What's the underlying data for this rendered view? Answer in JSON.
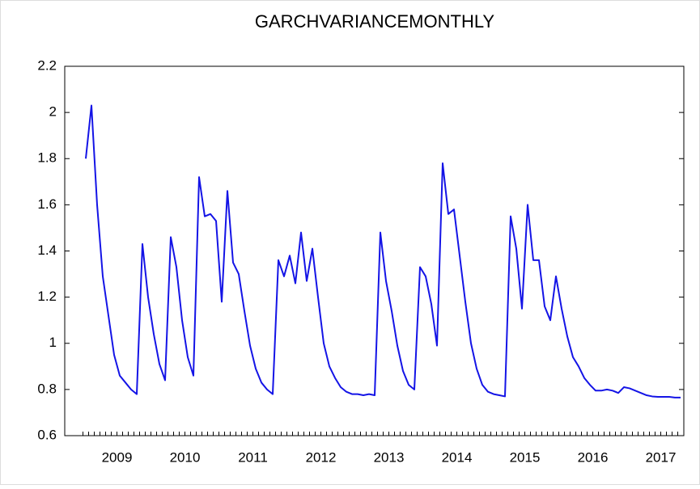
{
  "chart_data": {
    "type": "line",
    "title": "GARCHVARIANCEMONTHLY",
    "categories": [
      null,
      null,
      null,
      null,
      null,
      null,
      "2009",
      null,
      null,
      null,
      null,
      null,
      null,
      null,
      null,
      null,
      null,
      null,
      "2010",
      null,
      null,
      null,
      null,
      null,
      null,
      null,
      null,
      null,
      null,
      null,
      "2011",
      null,
      null,
      null,
      null,
      null,
      null,
      null,
      null,
      null,
      null,
      null,
      "2012",
      null,
      null,
      null,
      null,
      null,
      null,
      null,
      null,
      null,
      null,
      null,
      "2013",
      null,
      null,
      null,
      null,
      null,
      null,
      null,
      null,
      null,
      null,
      null,
      "2014",
      null,
      null,
      null,
      null,
      null,
      null,
      null,
      null,
      null,
      null,
      null,
      "2015",
      null,
      null,
      null,
      null,
      null,
      null,
      null,
      null,
      null,
      null,
      null,
      "2016",
      null,
      null,
      null,
      null,
      null,
      null,
      null,
      null,
      null,
      null,
      null,
      "2017",
      null,
      null,
      null
    ],
    "series": [
      {
        "name": "GARCHVARIANCEMONTHLY",
        "color": "#1414e6",
        "values": [
          1.8,
          2.03,
          1.6,
          1.29,
          1.12,
          0.95,
          0.86,
          0.83,
          0.8,
          0.78,
          1.43,
          1.2,
          1.04,
          0.91,
          0.84,
          1.46,
          1.33,
          1.1,
          0.94,
          0.86,
          1.72,
          1.55,
          1.56,
          1.53,
          1.18,
          1.66,
          1.35,
          1.3,
          1.14,
          0.99,
          0.89,
          0.83,
          0.8,
          0.78,
          1.36,
          1.29,
          1.38,
          1.26,
          1.48,
          1.27,
          1.41,
          1.2,
          1.0,
          0.9,
          0.85,
          0.81,
          0.79,
          0.78,
          0.78,
          0.775,
          0.78,
          0.775,
          1.48,
          1.27,
          1.14,
          0.99,
          0.88,
          0.82,
          0.8,
          1.33,
          1.29,
          1.17,
          0.99,
          1.78,
          1.56,
          1.58,
          1.38,
          1.18,
          1.0,
          0.89,
          0.82,
          0.79,
          0.78,
          0.775,
          0.77,
          1.55,
          1.41,
          1.15,
          1.6,
          1.36,
          1.36,
          1.16,
          1.1,
          1.29,
          1.15,
          1.03,
          0.94,
          0.9,
          0.85,
          0.82,
          0.795,
          0.795,
          0.8,
          0.795,
          0.785,
          0.81,
          0.805,
          0.795,
          0.785,
          0.775,
          0.77,
          0.768,
          0.768,
          0.768,
          0.765,
          0.765
        ]
      }
    ],
    "ylim": [
      0.6,
      2.2
    ],
    "yticks": [
      0.6,
      0.8,
      1.0,
      1.2,
      1.4,
      1.6,
      1.8,
      2.0,
      2.2
    ]
  }
}
